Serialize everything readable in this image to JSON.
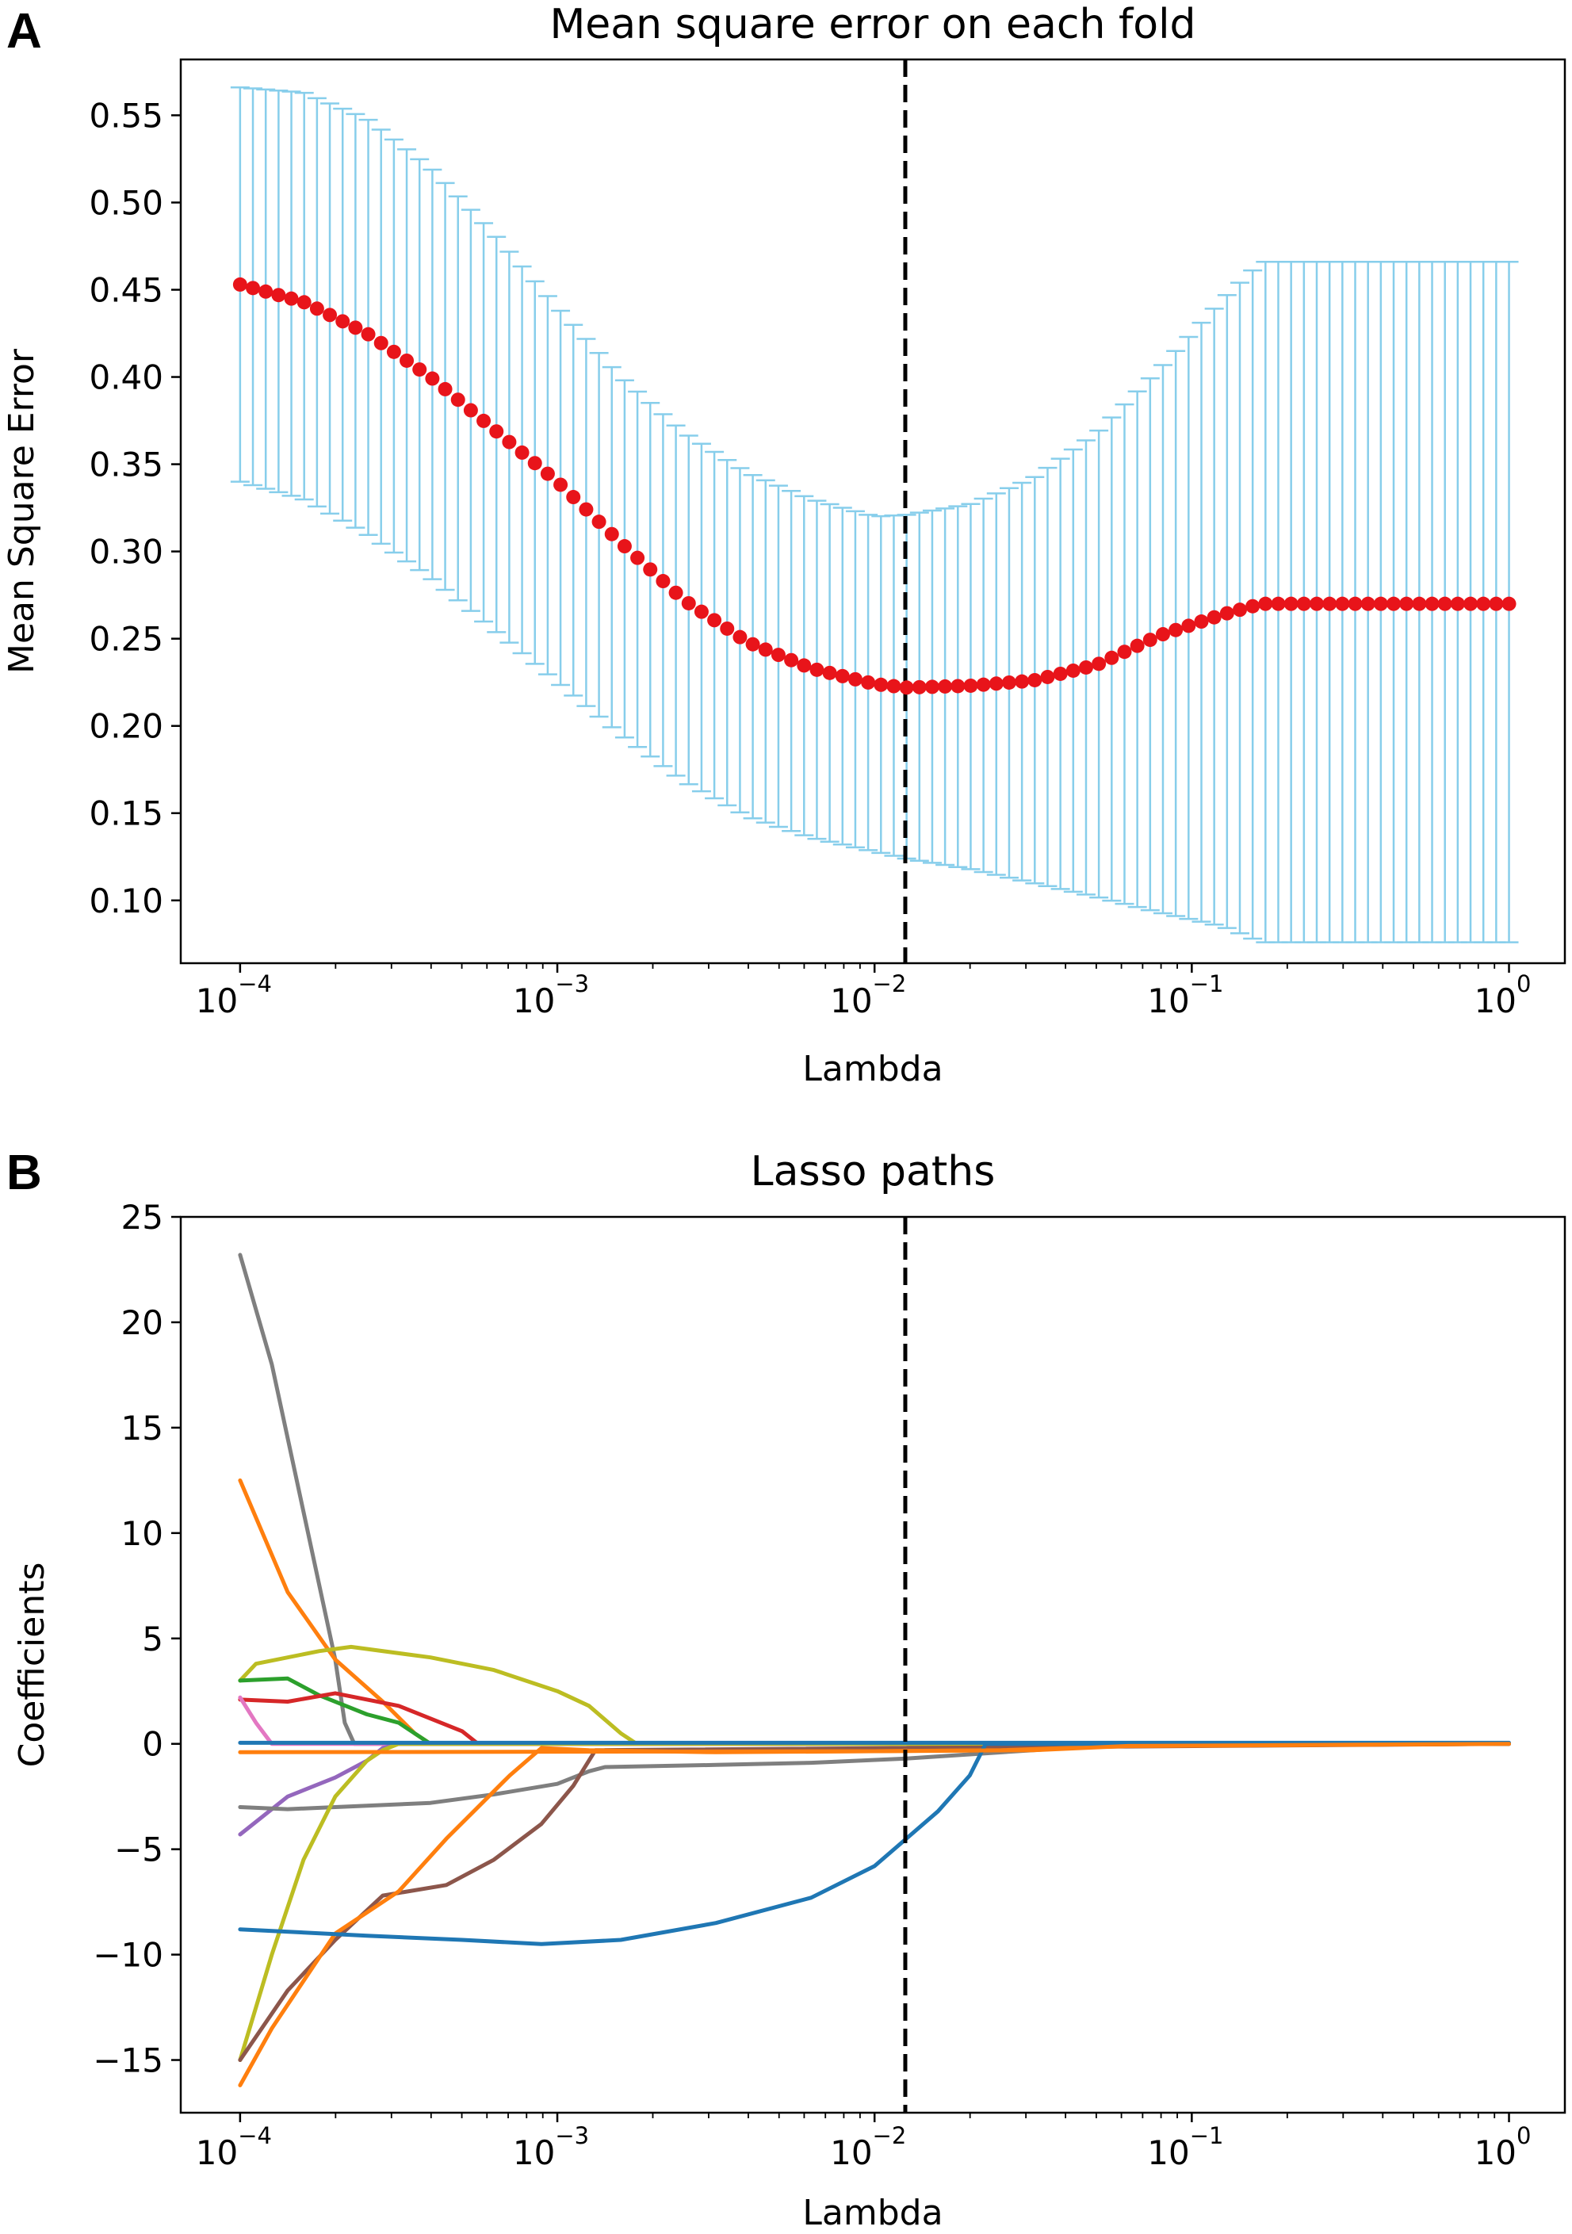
{
  "chart_data": [
    {
      "panel": "A",
      "type": "scatter",
      "title": "Mean square error on each fold",
      "xlabel": "Lambda",
      "ylabel": "Mean Square Error",
      "xscale": "log",
      "xlim": [
        6.5e-05,
        1.5
      ],
      "ylim": [
        0.064,
        0.582
      ],
      "yticks": [
        0.1,
        0.15,
        0.2,
        0.25,
        0.3,
        0.35,
        0.4,
        0.45,
        0.5,
        0.55
      ],
      "ytick_labels": [
        "0.10",
        "0.15",
        "0.20",
        "0.25",
        "0.30",
        "0.35",
        "0.40",
        "0.45",
        "0.50",
        "0.55"
      ],
      "xticks": [
        0.0001,
        0.001,
        0.01,
        0.1,
        1
      ],
      "xtick_labels": [
        {
          "base": "10",
          "exp": "−4"
        },
        {
          "base": "10",
          "exp": "−3"
        },
        {
          "base": "10",
          "exp": "−2"
        },
        {
          "base": "10",
          "exp": "−1"
        },
        {
          "base": "10",
          "exp": "0"
        }
      ],
      "lambda_range": [
        0.0001,
        1
      ],
      "n_points": 100,
      "mean_color": "#e8141a",
      "errorbar_color": "#87ceeb",
      "mean_curve": [
        {
          "log_lambda": -4.0,
          "mse": 0.453
        },
        {
          "log_lambda": -3.8,
          "mse": 0.443
        },
        {
          "log_lambda": -3.6,
          "mse": 0.425
        },
        {
          "log_lambda": -3.4,
          "mse": 0.4
        },
        {
          "log_lambda": -3.2,
          "mse": 0.37
        },
        {
          "log_lambda": -3.0,
          "mse": 0.34
        },
        {
          "log_lambda": -2.8,
          "mse": 0.305
        },
        {
          "log_lambda": -2.6,
          "mse": 0.272
        },
        {
          "log_lambda": -2.4,
          "mse": 0.248
        },
        {
          "log_lambda": -2.2,
          "mse": 0.233
        },
        {
          "log_lambda": -2.0,
          "mse": 0.224
        },
        {
          "log_lambda": -1.9,
          "mse": 0.222
        },
        {
          "log_lambda": -1.7,
          "mse": 0.223
        },
        {
          "log_lambda": -1.5,
          "mse": 0.226
        },
        {
          "log_lambda": -1.3,
          "mse": 0.235
        },
        {
          "log_lambda": -1.1,
          "mse": 0.252
        },
        {
          "log_lambda": -0.9,
          "mse": 0.264
        },
        {
          "log_lambda": -0.78,
          "mse": 0.27
        },
        {
          "log_lambda": 0.0,
          "mse": 0.27
        }
      ],
      "upper_curve": [
        {
          "log_lambda": -4.0,
          "mse": 0.566
        },
        {
          "log_lambda": -3.8,
          "mse": 0.563
        },
        {
          "log_lambda": -3.6,
          "mse": 0.548
        },
        {
          "log_lambda": -3.4,
          "mse": 0.52
        },
        {
          "log_lambda": -3.2,
          "mse": 0.482
        },
        {
          "log_lambda": -3.0,
          "mse": 0.44
        },
        {
          "log_lambda": -2.8,
          "mse": 0.4
        },
        {
          "log_lambda": -2.6,
          "mse": 0.368
        },
        {
          "log_lambda": -2.4,
          "mse": 0.345
        },
        {
          "log_lambda": -2.2,
          "mse": 0.33
        },
        {
          "log_lambda": -2.0,
          "mse": 0.32
        },
        {
          "log_lambda": -1.9,
          "mse": 0.321
        },
        {
          "log_lambda": -1.7,
          "mse": 0.327
        },
        {
          "log_lambda": -1.5,
          "mse": 0.342
        },
        {
          "log_lambda": -1.3,
          "mse": 0.368
        },
        {
          "log_lambda": -1.1,
          "mse": 0.405
        },
        {
          "log_lambda": -0.9,
          "mse": 0.445
        },
        {
          "log_lambda": -0.78,
          "mse": 0.466
        },
        {
          "log_lambda": 0.0,
          "mse": 0.466
        }
      ],
      "lower_curve": [
        {
          "log_lambda": -4.0,
          "mse": 0.34
        },
        {
          "log_lambda": -3.8,
          "mse": 0.33
        },
        {
          "log_lambda": -3.6,
          "mse": 0.31
        },
        {
          "log_lambda": -3.4,
          "mse": 0.285
        },
        {
          "log_lambda": -3.2,
          "mse": 0.255
        },
        {
          "log_lambda": -3.0,
          "mse": 0.225
        },
        {
          "log_lambda": -2.8,
          "mse": 0.195
        },
        {
          "log_lambda": -2.6,
          "mse": 0.168
        },
        {
          "log_lambda": -2.4,
          "mse": 0.148
        },
        {
          "log_lambda": -2.2,
          "mse": 0.136
        },
        {
          "log_lambda": -2.0,
          "mse": 0.128
        },
        {
          "log_lambda": -1.9,
          "mse": 0.124
        },
        {
          "log_lambda": -1.7,
          "mse": 0.118
        },
        {
          "log_lambda": -1.5,
          "mse": 0.11
        },
        {
          "log_lambda": -1.3,
          "mse": 0.102
        },
        {
          "log_lambda": -1.1,
          "mse": 0.093
        },
        {
          "log_lambda": -0.9,
          "mse": 0.085
        },
        {
          "log_lambda": -0.78,
          "mse": 0.076
        },
        {
          "log_lambda": 0.0,
          "mse": 0.076
        }
      ],
      "vline": {
        "lambda": 0.0125,
        "style": "dashed",
        "color": "#000000"
      }
    },
    {
      "panel": "B",
      "type": "line",
      "title": "Lasso paths",
      "xlabel": "Lambda",
      "ylabel": "Coefficients",
      "xscale": "log",
      "xlim": [
        6.5e-05,
        1.5
      ],
      "ylim": [
        -17.5,
        25.0
      ],
      "yticks": [
        -15,
        -10,
        -5,
        0,
        5,
        10,
        15,
        20,
        25
      ],
      "ytick_labels": [
        "−15",
        "−10",
        "−5",
        "0",
        "5",
        "10",
        "15",
        "20",
        "25"
      ],
      "xticks": [
        0.0001,
        0.001,
        0.01,
        0.1,
        1
      ],
      "xtick_labels": [
        {
          "base": "10",
          "exp": "−4"
        },
        {
          "base": "10",
          "exp": "−3"
        },
        {
          "base": "10",
          "exp": "−2"
        },
        {
          "base": "10",
          "exp": "−1"
        },
        {
          "base": "10",
          "exp": "0"
        }
      ],
      "vline": {
        "lambda": 0.0125,
        "style": "dashed",
        "color": "#000000"
      },
      "series": [
        {
          "name": "gray-large",
          "color": "#7f7f7f",
          "points": [
            [
              -4.0,
              23.2
            ],
            [
              -3.9,
              18.0
            ],
            [
              -3.8,
              11.0
            ],
            [
              -3.7,
              4.0
            ],
            [
              -3.67,
              1.0
            ],
            [
              -3.64,
              0.0
            ],
            [
              0.0,
              0.0
            ]
          ]
        },
        {
          "name": "orange-high",
          "color": "#ff7f0e",
          "points": [
            [
              -4.0,
              12.5
            ],
            [
              -3.85,
              7.2
            ],
            [
              -3.7,
              4.0
            ],
            [
              -3.55,
              2.0
            ],
            [
              -3.45,
              0.5
            ],
            [
              -3.4,
              0.0
            ],
            [
              0.0,
              0.0
            ]
          ]
        },
        {
          "name": "olive-hump",
          "color": "#bcbd22",
          "points": [
            [
              -4.0,
              3.0
            ],
            [
              -3.95,
              3.8
            ],
            [
              -3.75,
              4.4
            ],
            [
              -3.65,
              4.6
            ],
            [
              -3.4,
              4.1
            ],
            [
              -3.2,
              3.5
            ],
            [
              -3.0,
              2.5
            ],
            [
              -2.9,
              1.8
            ],
            [
              -2.8,
              0.5
            ],
            [
              -2.75,
              0.0
            ],
            [
              0.0,
              0.0
            ]
          ]
        },
        {
          "name": "green",
          "color": "#2ca02c",
          "points": [
            [
              -4.0,
              3.0
            ],
            [
              -3.85,
              3.1
            ],
            [
              -3.75,
              2.3
            ],
            [
              -3.6,
              1.4
            ],
            [
              -3.5,
              1.0
            ],
            [
              -3.45,
              0.5
            ],
            [
              -3.4,
              0.0
            ],
            [
              0.0,
              0.0
            ]
          ]
        },
        {
          "name": "red",
          "color": "#d62728",
          "points": [
            [
              -4.0,
              2.1
            ],
            [
              -3.85,
              2.0
            ],
            [
              -3.7,
              2.4
            ],
            [
              -3.5,
              1.8
            ],
            [
              -3.4,
              1.2
            ],
            [
              -3.3,
              0.6
            ],
            [
              -3.25,
              0.0
            ],
            [
              0.0,
              0.0
            ]
          ]
        },
        {
          "name": "pink",
          "color": "#e377c2",
          "points": [
            [
              -4.0,
              2.2
            ],
            [
              -3.95,
              1.0
            ],
            [
              -3.9,
              0.0
            ],
            [
              0.0,
              0.0
            ]
          ]
        },
        {
          "name": "purple",
          "color": "#9467bd",
          "points": [
            [
              -4.0,
              -4.3
            ],
            [
              -3.85,
              -2.5
            ],
            [
              -3.7,
              -1.6
            ],
            [
              -3.6,
              -0.8
            ],
            [
              -3.55,
              -0.2
            ],
            [
              -3.5,
              0.0
            ],
            [
              0.0,
              0.0
            ]
          ]
        },
        {
          "name": "gray-mid",
          "color": "#7f7f7f",
          "points": [
            [
              -4.0,
              -3.0
            ],
            [
              -3.85,
              -3.1
            ],
            [
              -3.7,
              -3.0
            ],
            [
              -3.4,
              -2.8
            ],
            [
              -3.2,
              -2.4
            ],
            [
              -3.0,
              -1.9
            ],
            [
              -2.9,
              -1.3
            ],
            [
              -2.85,
              -1.1
            ],
            [
              -2.5,
              -1.0
            ],
            [
              -2.2,
              -0.9
            ],
            [
              -1.9,
              -0.7
            ],
            [
              -1.7,
              -0.5
            ],
            [
              -1.5,
              -0.3
            ],
            [
              -1.3,
              -0.1
            ],
            [
              0.0,
              0.0
            ]
          ]
        },
        {
          "name": "olive-low",
          "color": "#bcbd22",
          "points": [
            [
              -4.0,
              -15.0
            ],
            [
              -3.9,
              -10.0
            ],
            [
              -3.8,
              -5.5
            ],
            [
              -3.7,
              -2.5
            ],
            [
              -3.6,
              -0.8
            ],
            [
              -3.55,
              -0.3
            ],
            [
              -3.5,
              0.0
            ],
            [
              0.0,
              0.0
            ]
          ]
        },
        {
          "name": "brown",
          "color": "#8c564b",
          "points": [
            [
              -4.0,
              -15.0
            ],
            [
              -3.85,
              -11.7
            ],
            [
              -3.7,
              -9.3
            ],
            [
              -3.55,
              -7.2
            ],
            [
              -3.35,
              -6.7
            ],
            [
              -3.2,
              -5.5
            ],
            [
              -3.05,
              -3.8
            ],
            [
              -2.95,
              -2.0
            ],
            [
              -2.88,
              -0.3
            ],
            [
              0.0,
              0.0
            ]
          ]
        },
        {
          "name": "orange-low",
          "color": "#ff7f0e",
          "points": [
            [
              -4.0,
              -16.2
            ],
            [
              -3.9,
              -13.5
            ],
            [
              -3.7,
              -9.0
            ],
            [
              -3.5,
              -7.0
            ],
            [
              -3.35,
              -4.5
            ],
            [
              -3.15,
              -1.5
            ],
            [
              -3.05,
              -0.2
            ],
            [
              -2.9,
              -0.3
            ],
            [
              -2.5,
              -0.4
            ],
            [
              -2.0,
              -0.35
            ],
            [
              -1.6,
              -0.3
            ],
            [
              -1.2,
              -0.1
            ],
            [
              0.0,
              0.0
            ]
          ]
        },
        {
          "name": "blue",
          "color": "#1f77b4",
          "points": [
            [
              -4.0,
              -8.8
            ],
            [
              -3.6,
              -9.1
            ],
            [
              -3.3,
              -9.3
            ],
            [
              -3.05,
              -9.5
            ],
            [
              -2.8,
              -9.3
            ],
            [
              -2.5,
              -8.5
            ],
            [
              -2.2,
              -7.3
            ],
            [
              -2.0,
              -5.8
            ],
            [
              -1.9,
              -4.5
            ],
            [
              -1.8,
              -3.2
            ],
            [
              -1.7,
              -1.5
            ],
            [
              -1.65,
              0.0
            ],
            [
              0.0,
              0.0
            ]
          ]
        },
        {
          "name": "blue-flat",
          "color": "#1f77b4",
          "points": [
            [
              -4.0,
              0.05
            ],
            [
              0.0,
              0.05
            ]
          ]
        },
        {
          "name": "orange-flat",
          "color": "#ff7f0e",
          "points": [
            [
              -4.0,
              -0.4
            ],
            [
              -2.0,
              -0.35
            ],
            [
              -1.5,
              -0.3
            ],
            [
              -1.2,
              -0.1
            ],
            [
              0.0,
              0.0
            ]
          ]
        }
      ]
    }
  ]
}
